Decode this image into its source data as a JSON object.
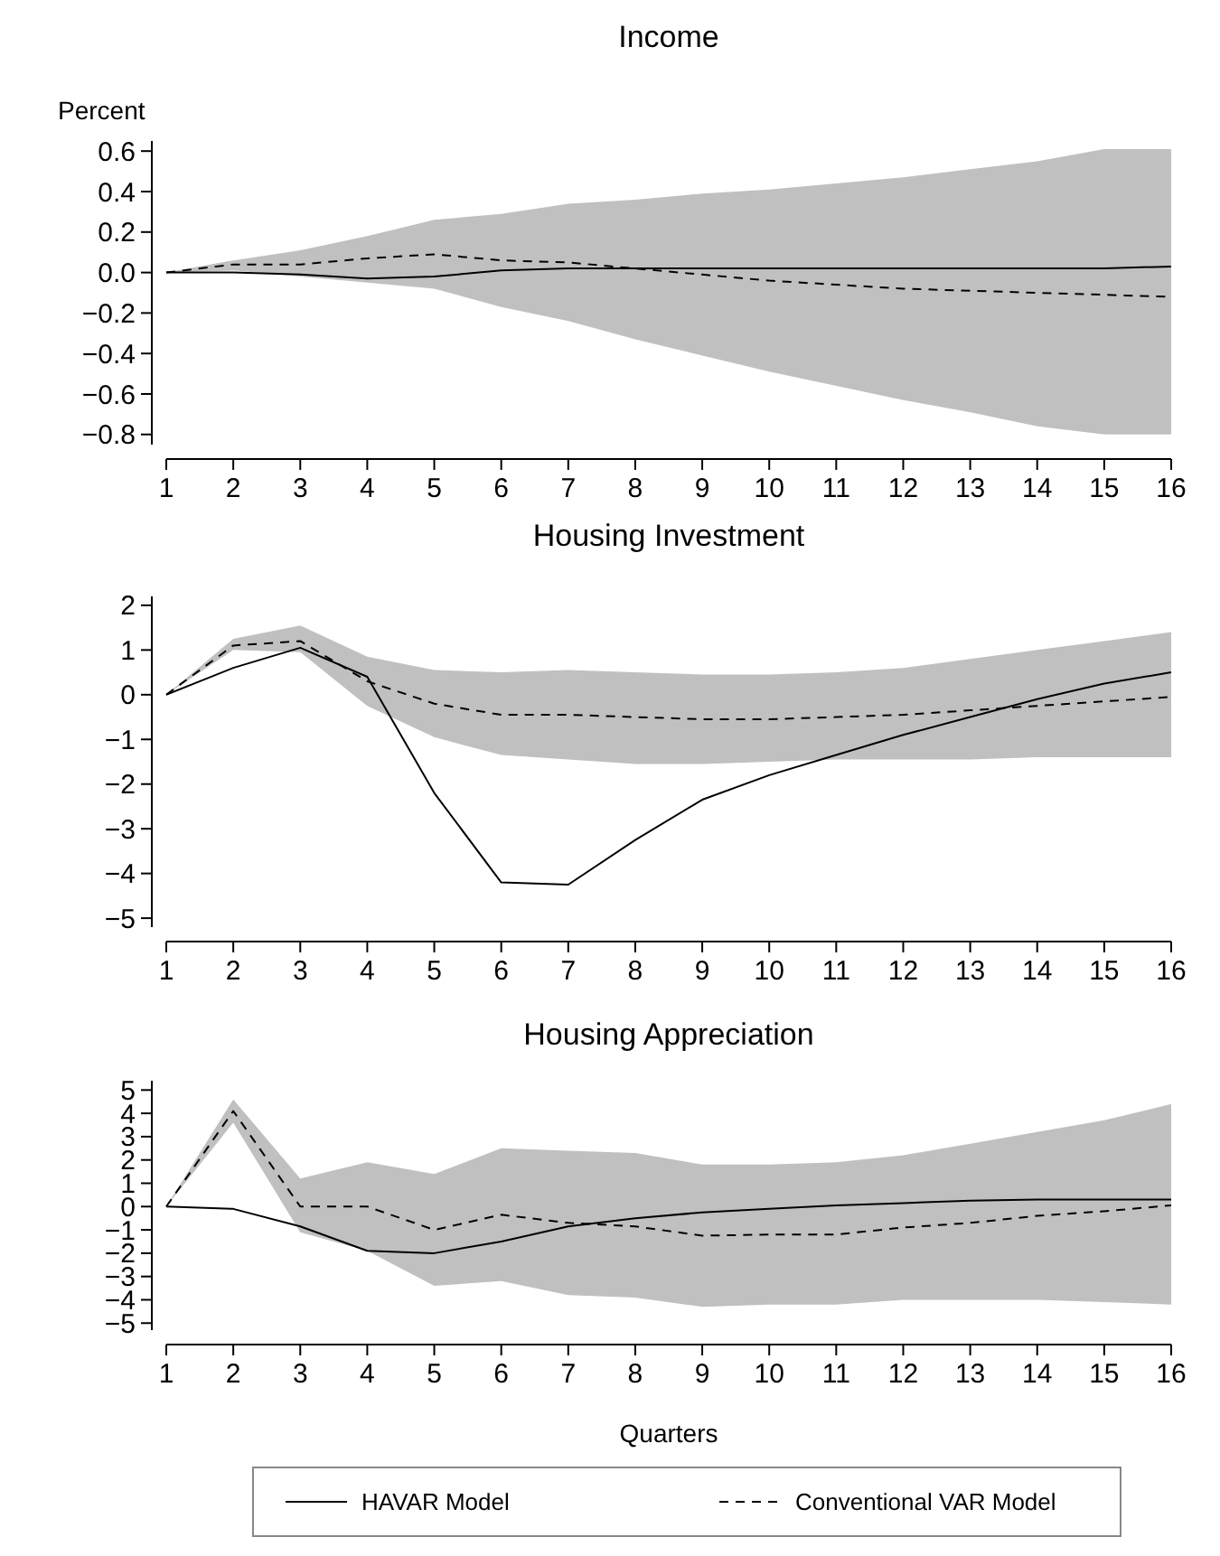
{
  "chart_data": [
    {
      "type": "line",
      "title": "Income",
      "ylabel": "Percent",
      "x": [
        1,
        2,
        3,
        4,
        5,
        6,
        7,
        8,
        9,
        10,
        11,
        12,
        13,
        14,
        15,
        16
      ],
      "xlim": [
        1,
        16
      ],
      "xticks": [
        1,
        2,
        3,
        4,
        5,
        6,
        7,
        8,
        9,
        10,
        11,
        12,
        13,
        14,
        15,
        16
      ],
      "ylim": [
        -0.85,
        0.65
      ],
      "yticks": [
        {
          "value": -0.8,
          "label": "−0.8"
        },
        {
          "value": -0.6,
          "label": "−0.6"
        },
        {
          "value": -0.4,
          "label": "−0.4"
        },
        {
          "value": -0.2,
          "label": "−0.2"
        },
        {
          "value": 0,
          "label": "0.0"
        },
        {
          "value": 0.2,
          "label": "0.2"
        },
        {
          "value": 0.4,
          "label": "0.4"
        },
        {
          "value": 0.6,
          "label": "0.6"
        }
      ],
      "grid": false,
      "legend": false,
      "series": [
        {
          "color": "#000000",
          "line_style": "solid",
          "values": [
            0,
            0,
            -0.01,
            -0.03,
            -0.02,
            0.01,
            0.02,
            0.02,
            0.02,
            0.02,
            0.02,
            0.02,
            0.02,
            0.02,
            0.02,
            0.03
          ]
        },
        {
          "color": "#000000",
          "line_style": "dashed",
          "values": [
            0,
            0.04,
            0.04,
            0.07,
            0.09,
            0.06,
            0.05,
            0.02,
            -0.01,
            -0.04,
            -0.06,
            -0.08,
            -0.09,
            -0.1,
            -0.11,
            -0.12
          ],
          "lower": [
            0,
            0.01,
            -0.02,
            -0.05,
            -0.08,
            -0.17,
            -0.24,
            -0.33,
            -0.41,
            -0.49,
            -0.56,
            -0.63,
            -0.69,
            -0.76,
            -0.8,
            -0.8
          ],
          "upper": [
            0,
            0.06,
            0.11,
            0.18,
            0.26,
            0.29,
            0.34,
            0.36,
            0.39,
            0.41,
            0.44,
            0.47,
            0.51,
            0.55,
            0.61,
            0.61
          ]
        }
      ]
    },
    {
      "type": "line",
      "title": "Housing Investment",
      "x": [
        1,
        2,
        3,
        4,
        5,
        6,
        7,
        8,
        9,
        10,
        11,
        12,
        13,
        14,
        15,
        16
      ],
      "xlim": [
        1,
        16
      ],
      "xticks": [
        1,
        2,
        3,
        4,
        5,
        6,
        7,
        8,
        9,
        10,
        11,
        12,
        13,
        14,
        15,
        16
      ],
      "ylim": [
        -5.2,
        2.2
      ],
      "yticks": [
        {
          "value": -5,
          "label": "−5"
        },
        {
          "value": -4,
          "label": "−4"
        },
        {
          "value": -3,
          "label": "−3"
        },
        {
          "value": -2,
          "label": "−2"
        },
        {
          "value": -1,
          "label": "−1"
        },
        0,
        1,
        2
      ],
      "grid": false,
      "legend": false,
      "series": [
        {
          "color": "#000000",
          "line_style": "solid",
          "values": [
            0,
            0.6,
            1.05,
            0.4,
            -2.2,
            -4.2,
            -4.25,
            -3.25,
            -2.35,
            -1.8,
            -1.35,
            -0.9,
            -0.5,
            -0.1,
            0.25,
            0.5
          ]
        },
        {
          "color": "#000000",
          "line_style": "dashed",
          "values": [
            0,
            1.1,
            1.2,
            0.3,
            -0.2,
            -0.45,
            -0.45,
            -0.5,
            -0.55,
            -0.55,
            -0.5,
            -0.45,
            -0.35,
            -0.25,
            -0.15,
            -0.05
          ],
          "lower": [
            0,
            1,
            0.95,
            -0.25,
            -0.95,
            -1.35,
            -1.45,
            -1.55,
            -1.55,
            -1.5,
            -1.45,
            -1.45,
            -1.45,
            -1.4,
            -1.4,
            -1.4
          ],
          "upper": [
            0,
            1.25,
            1.55,
            0.85,
            0.55,
            0.5,
            0.55,
            0.5,
            0.45,
            0.45,
            0.5,
            0.6,
            0.8,
            1,
            1.2,
            1.4
          ]
        }
      ]
    },
    {
      "type": "line",
      "title": "Housing Appreciation",
      "xlabel": "Quarters",
      "x": [
        1,
        2,
        3,
        4,
        5,
        6,
        7,
        8,
        9,
        10,
        11,
        12,
        13,
        14,
        15,
        16
      ],
      "xlim": [
        1,
        16
      ],
      "xticks": [
        1,
        2,
        3,
        4,
        5,
        6,
        7,
        8,
        9,
        10,
        11,
        12,
        13,
        14,
        15,
        16
      ],
      "ylim": [
        -5.3,
        5.4
      ],
      "yticks": [
        {
          "value": -5,
          "label": "−5"
        },
        {
          "value": -4,
          "label": "−4"
        },
        {
          "value": -3,
          "label": "−3"
        },
        {
          "value": -2,
          "label": "−2"
        },
        {
          "value": -1,
          "label": "−1"
        },
        0,
        1,
        2,
        3,
        4,
        5
      ],
      "grid": false,
      "legend": "bottom",
      "series": [
        {
          "name": "HAVAR Model",
          "color": "#000000",
          "line_style": "solid",
          "values": [
            0,
            -0.1,
            -0.85,
            -1.9,
            -2,
            -1.5,
            -0.85,
            -0.5,
            -0.25,
            -0.1,
            0.05,
            0.15,
            0.25,
            0.3,
            0.3,
            0.3
          ]
        },
        {
          "name": "Conventional VAR Model",
          "color": "#000000",
          "line_style": "dashed",
          "values": [
            0,
            4.1,
            0,
            0,
            -1,
            -0.35,
            -0.7,
            -0.85,
            -1.25,
            -1.2,
            -1.2,
            -0.9,
            -0.7,
            -0.4,
            -0.2,
            0.05
          ],
          "lower": [
            0,
            3.6,
            -1.1,
            -1.9,
            -3.4,
            -3.2,
            -3.8,
            -3.9,
            -4.3,
            -4.2,
            -4.2,
            -4,
            -4,
            -4,
            -4.1,
            -4.2
          ],
          "upper": [
            0,
            4.6,
            1.2,
            1.9,
            1.4,
            2.5,
            2.4,
            2.3,
            1.8,
            1.8,
            1.9,
            2.2,
            2.7,
            3.2,
            3.7,
            4.4
          ]
        }
      ]
    }
  ]
}
